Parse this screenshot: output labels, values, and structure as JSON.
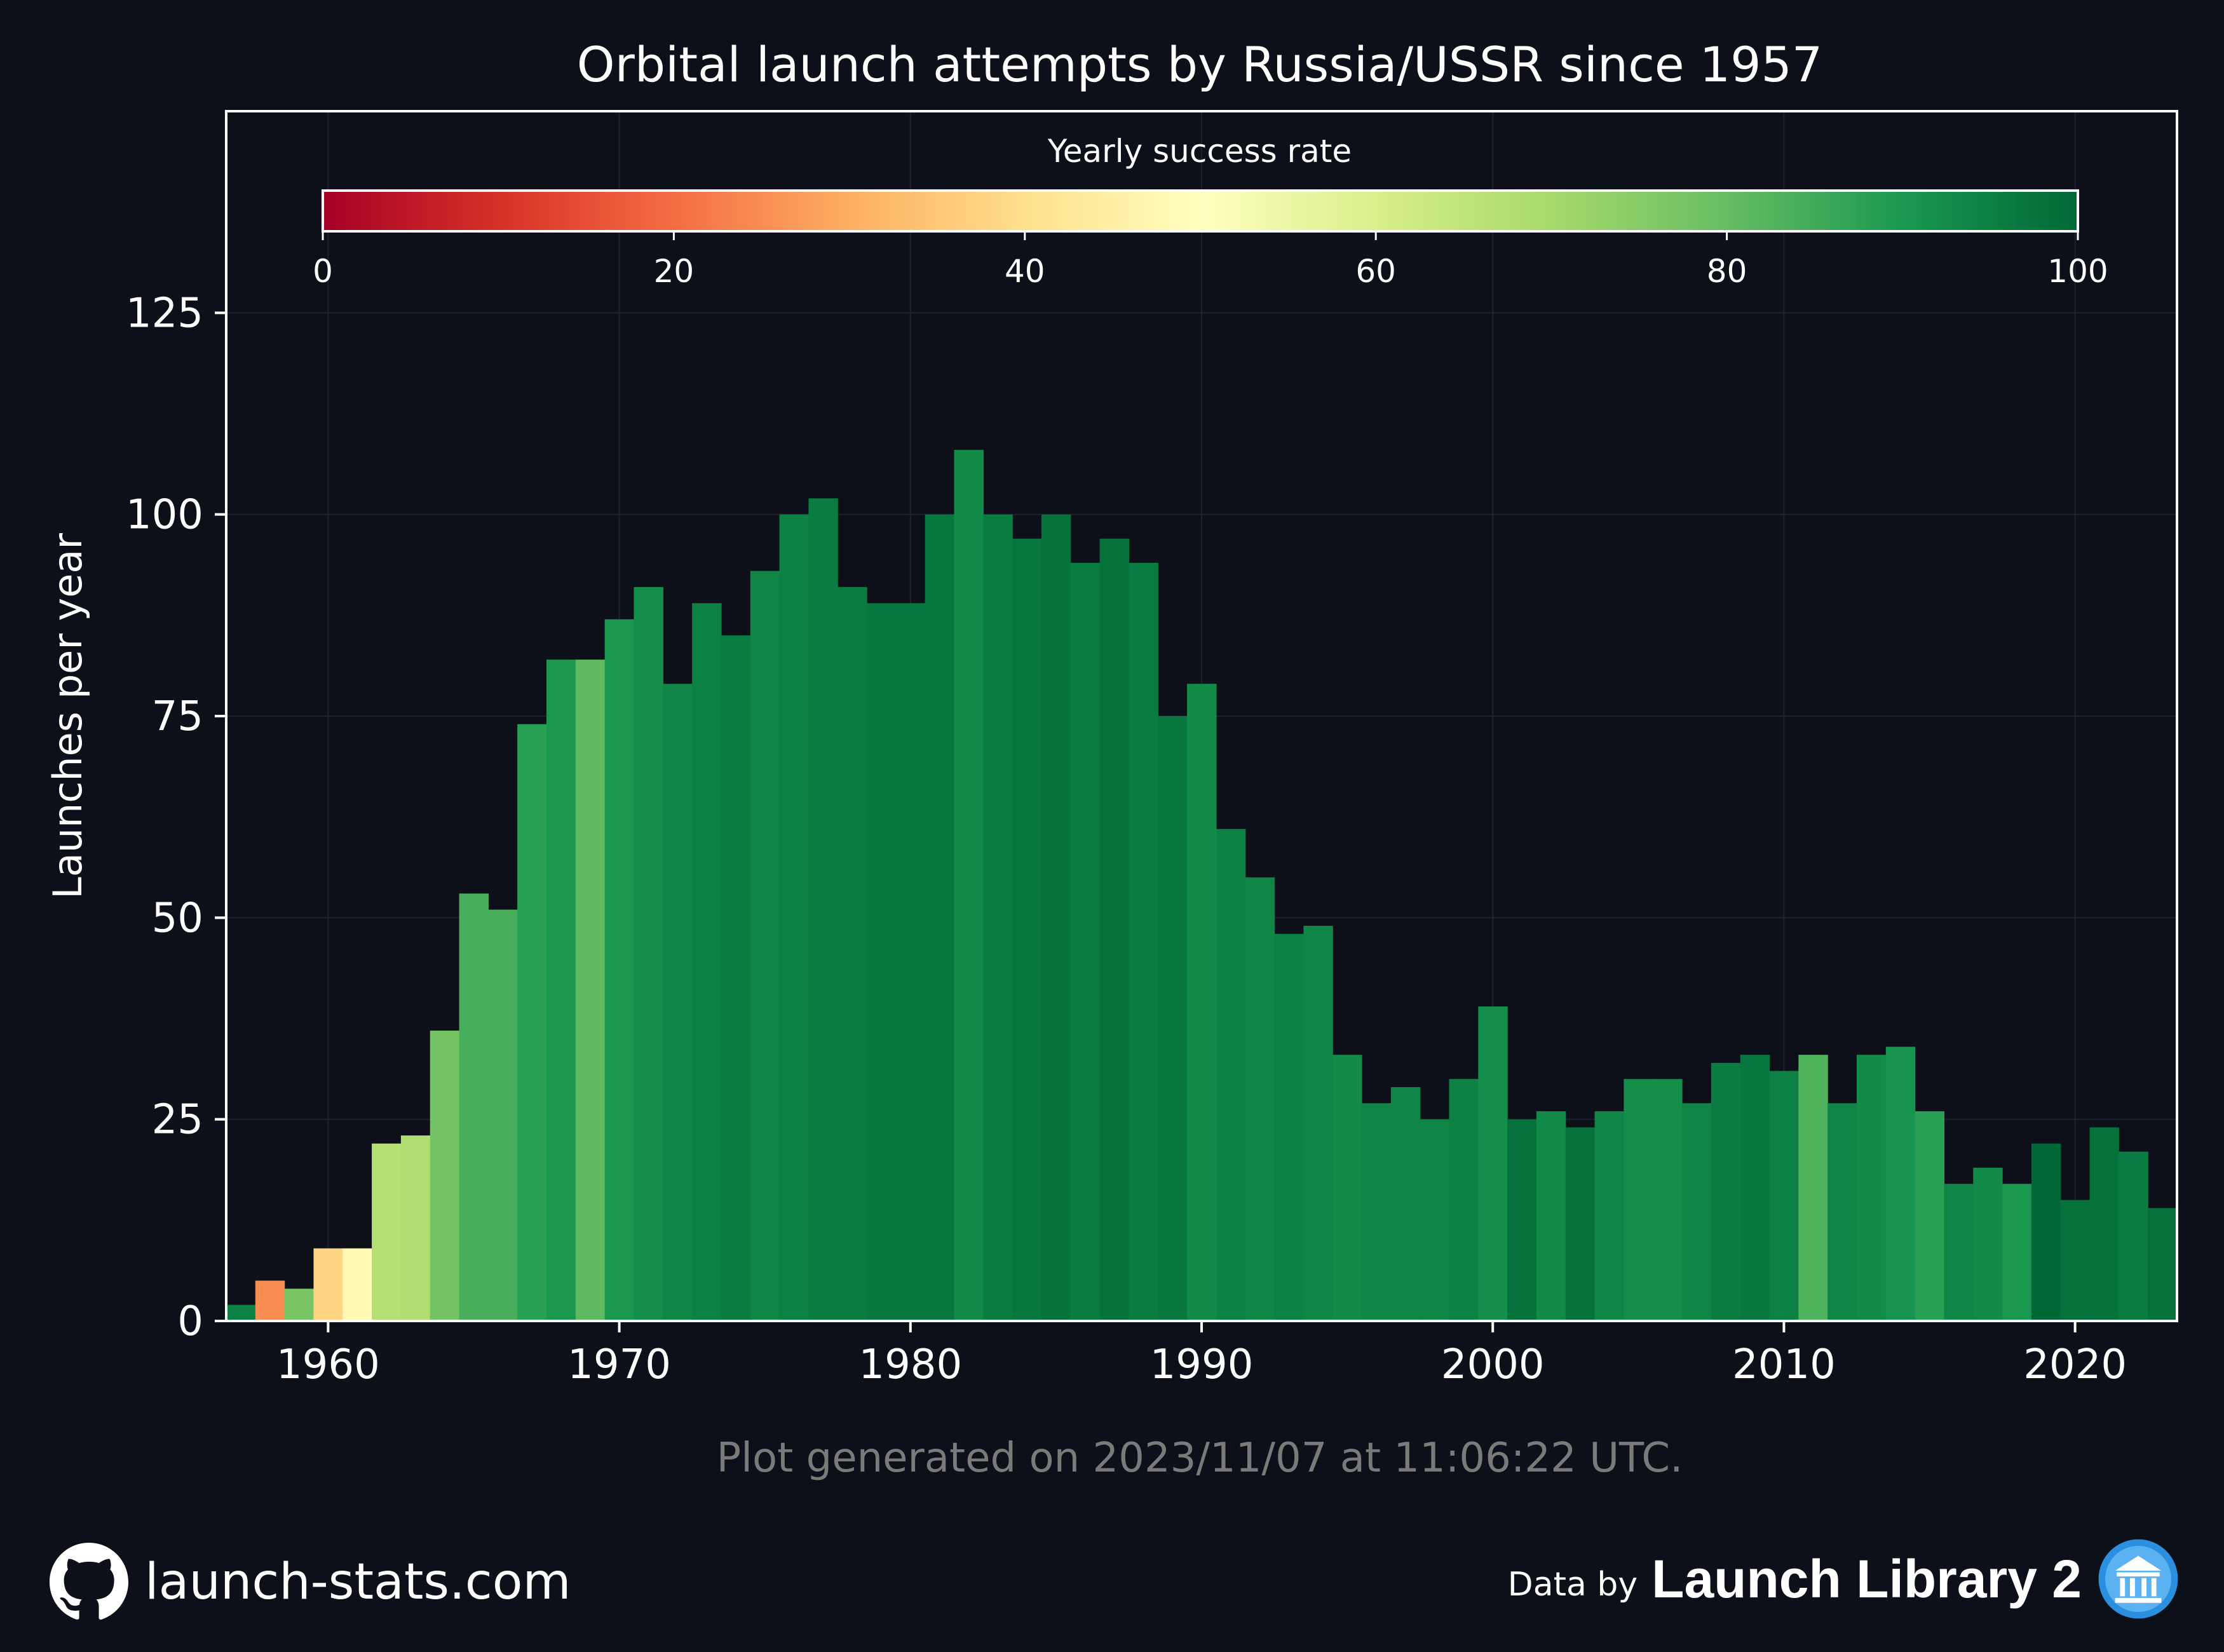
{
  "chart_data": {
    "type": "bar",
    "title": "Orbital launch attempts by Russia/USSR since 1957",
    "xlabel": "",
    "ylabel": "Launches per year",
    "xlim": [
      1956.5,
      2023.5
    ],
    "ylim": [
      0,
      150
    ],
    "x_ticks": [
      1960,
      1970,
      1980,
      1990,
      2000,
      2010,
      2020
    ],
    "y_ticks": [
      0,
      25,
      50,
      75,
      100,
      125
    ],
    "grid": true,
    "colorbar": {
      "label": "Yearly success rate",
      "range": [
        0,
        100
      ],
      "ticks": [
        0,
        20,
        40,
        60,
        80,
        100
      ],
      "colormap": "RdYlGn",
      "placement": "top"
    },
    "years": [
      1957,
      1958,
      1959,
      1960,
      1961,
      1962,
      1963,
      1964,
      1965,
      1966,
      1967,
      1968,
      1969,
      1970,
      1971,
      1972,
      1973,
      1974,
      1975,
      1976,
      1977,
      1978,
      1979,
      1980,
      1981,
      1982,
      1983,
      1984,
      1985,
      1986,
      1987,
      1988,
      1989,
      1990,
      1991,
      1992,
      1993,
      1994,
      1995,
      1996,
      1997,
      1998,
      1999,
      2000,
      2001,
      2002,
      2003,
      2004,
      2005,
      2006,
      2007,
      2008,
      2009,
      2010,
      2011,
      2012,
      2013,
      2014,
      2015,
      2016,
      2017,
      2018,
      2019,
      2020,
      2021,
      2022,
      2023
    ],
    "values": [
      2,
      5,
      4,
      9,
      9,
      22,
      23,
      36,
      53,
      51,
      74,
      82,
      82,
      87,
      91,
      79,
      89,
      85,
      93,
      100,
      102,
      91,
      89,
      89,
      100,
      108,
      100,
      97,
      100,
      94,
      97,
      94,
      75,
      79,
      61,
      55,
      48,
      49,
      33,
      27,
      29,
      25,
      30,
      39,
      25,
      26,
      24,
      26,
      30,
      30,
      27,
      32,
      33,
      31,
      33,
      27,
      33,
      34,
      26,
      17,
      19,
      17,
      22,
      15,
      24,
      21,
      14
    ],
    "success_rate": [
      95,
      25,
      77,
      38,
      48,
      67,
      68,
      78,
      84,
      84,
      88,
      90,
      81,
      90,
      92,
      94,
      95,
      96,
      94,
      95,
      96,
      96,
      97,
      97,
      97,
      93,
      96,
      97,
      98,
      96,
      98,
      96,
      97,
      93,
      95,
      94,
      95,
      94,
      93,
      94,
      94,
      94,
      95,
      92,
      98,
      93,
      98,
      94,
      92,
      92,
      94,
      96,
      97,
      95,
      83,
      94,
      93,
      91,
      88,
      94,
      93,
      90,
      100,
      98,
      98,
      96,
      98
    ]
  },
  "footer": {
    "generated": "Plot generated on 2023/11/07 at 11:06:22 UTC.",
    "site": "launch-stats.com",
    "data_by": "Data by",
    "source": "Launch Library 2"
  },
  "colors": {
    "background": "#0d1018",
    "text": "#ffffff",
    "muted_text": "#7a7a7a",
    "grid": "#1e222c"
  },
  "icons": {
    "site": "github-icon",
    "source": "museum-icon"
  }
}
